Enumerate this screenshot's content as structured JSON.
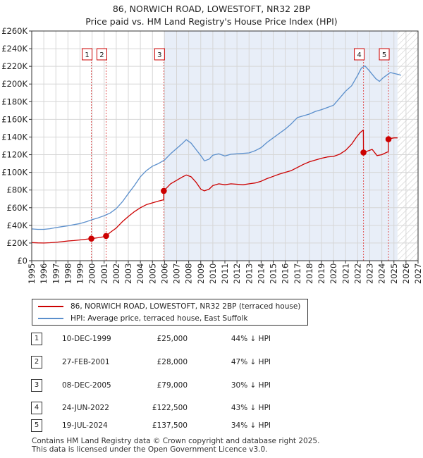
{
  "title_line1": "86, NORWICH ROAD, LOWESTOFT, NR32 2BP",
  "title_line2": "Price paid vs. HM Land Registry's House Price Index (HPI)",
  "chart_data": {
    "type": "line",
    "title": "86, NORWICH ROAD, LOWESTOFT, NR32 2BP",
    "subtitle": "Price paid vs. HM Land Registry's House Price Index (HPI)",
    "xlabel": "",
    "ylabel": "",
    "xlim": [
      1995,
      2027
    ],
    "ylim": [
      0,
      260000
    ],
    "x_ticks": [
      1995,
      1996,
      1997,
      1998,
      1999,
      2000,
      2001,
      2002,
      2003,
      2004,
      2005,
      2006,
      2007,
      2008,
      2009,
      2010,
      2011,
      2012,
      2013,
      2014,
      2015,
      2016,
      2017,
      2018,
      2019,
      2020,
      2021,
      2022,
      2023,
      2024,
      2025,
      2026,
      2027
    ],
    "y_ticks": [
      0,
      20000,
      40000,
      60000,
      80000,
      100000,
      120000,
      140000,
      160000,
      180000,
      200000,
      220000,
      240000,
      260000
    ],
    "y_tick_labels": [
      "£0",
      "£20K",
      "£40K",
      "£60K",
      "£80K",
      "£100K",
      "£120K",
      "£140K",
      "£160K",
      "£180K",
      "£200K",
      "£220K",
      "£240K",
      "£260K"
    ],
    "shaded_region": [
      2005.94,
      2025.3
    ],
    "projection_from": 2025.3,
    "grid": true,
    "series": [
      {
        "name": "86, NORWICH ROAD, LOWESTOFT, NR32 2BP (terraced house)",
        "color": "#cc0000",
        "x": [
          1995.0,
          1995.5,
          1996.0,
          1996.5,
          1997.0,
          1997.5,
          1998.0,
          1998.5,
          1999.0,
          1999.5,
          1999.94,
          2000.5,
          2001.0,
          2001.16,
          2001.5,
          2002.0,
          2002.5,
          2003.0,
          2003.5,
          2004.0,
          2004.5,
          2005.0,
          2005.5,
          2005.93,
          2005.94,
          2006.5,
          2007.0,
          2007.5,
          2007.8,
          2008.2,
          2008.6,
          2009.0,
          2009.3,
          2009.7,
          2010.0,
          2010.5,
          2011.0,
          2011.5,
          2012.0,
          2012.5,
          2013.0,
          2013.5,
          2014.0,
          2014.5,
          2015.0,
          2015.5,
          2016.0,
          2016.5,
          2017.0,
          2017.5,
          2018.0,
          2018.5,
          2019.0,
          2019.5,
          2020.0,
          2020.5,
          2021.0,
          2021.5,
          2021.9,
          2022.2,
          2022.47,
          2022.48,
          2022.8,
          2023.2,
          2023.6,
          2024.0,
          2024.3,
          2024.54,
          2024.55,
          2024.8,
          2025.0,
          2025.3
        ],
        "values": [
          20500,
          20200,
          20000,
          20300,
          20800,
          21500,
          22300,
          22800,
          23500,
          24300,
          25000,
          26000,
          27200,
          28000,
          32000,
          37000,
          44000,
          50000,
          55500,
          60000,
          63500,
          65500,
          67500,
          69000,
          79000,
          87000,
          91000,
          95000,
          97000,
          95000,
          89000,
          81000,
          79000,
          81000,
          85000,
          87000,
          86000,
          87000,
          86500,
          86000,
          87000,
          88000,
          90000,
          93000,
          95500,
          98000,
          100000,
          102000,
          105500,
          109000,
          112000,
          114000,
          116000,
          117500,
          118000,
          120500,
          125000,
          132000,
          140000,
          145000,
          148000,
          122500,
          124000,
          126000,
          119000,
          120000,
          122000,
          123500,
          137500,
          138500,
          139000,
          139000
        ]
      },
      {
        "name": "HPI: Average price, terraced house, East Suffolk",
        "color": "#5b8fcc",
        "x": [
          1995.0,
          1995.5,
          1996.0,
          1996.5,
          1997.0,
          1997.5,
          1998.0,
          1998.5,
          1999.0,
          1999.5,
          2000.0,
          2000.5,
          2001.0,
          2001.5,
          2002.0,
          2002.5,
          2003.0,
          2003.5,
          2004.0,
          2004.5,
          2005.0,
          2005.5,
          2006.0,
          2006.5,
          2007.0,
          2007.5,
          2007.8,
          2008.2,
          2008.6,
          2009.0,
          2009.3,
          2009.7,
          2010.0,
          2010.5,
          2011.0,
          2011.5,
          2012.0,
          2012.5,
          2013.0,
          2013.5,
          2014.0,
          2014.5,
          2015.0,
          2015.5,
          2016.0,
          2016.5,
          2017.0,
          2017.5,
          2018.0,
          2018.5,
          2019.0,
          2019.5,
          2020.0,
          2020.5,
          2021.0,
          2021.5,
          2022.0,
          2022.3,
          2022.6,
          2022.9,
          2023.2,
          2023.5,
          2023.8,
          2024.1,
          2024.4,
          2024.7,
          2025.0,
          2025.3,
          2025.6
        ],
        "values": [
          36000,
          35500,
          35500,
          36200,
          37500,
          38500,
          39500,
          40800,
          42000,
          44000,
          46500,
          48500,
          51000,
          54000,
          59000,
          66500,
          76000,
          85000,
          95000,
          102000,
          107000,
          110000,
          114000,
          121000,
          127000,
          133000,
          137000,
          133000,
          126000,
          119000,
          113000,
          115000,
          119500,
          121000,
          118500,
          120500,
          121000,
          121500,
          122000,
          124500,
          128000,
          134000,
          139000,
          144000,
          149000,
          155000,
          162000,
          164000,
          166000,
          169000,
          171000,
          173500,
          176000,
          184000,
          192000,
          198000,
          210000,
          218000,
          220500,
          216000,
          211000,
          206000,
          203000,
          207000,
          210000,
          213000,
          212000,
          211000,
          210000
        ]
      }
    ],
    "sales": [
      {
        "num": "1",
        "x": 1999.94,
        "price": 25000
      },
      {
        "num": "2",
        "x": 2001.16,
        "price": 28000
      },
      {
        "num": "3",
        "x": 2005.94,
        "price": 79000
      },
      {
        "num": "4",
        "x": 2022.48,
        "price": 122500
      },
      {
        "num": "5",
        "x": 2024.55,
        "price": 137500
      }
    ]
  },
  "legend": {
    "property_label": "86, NORWICH ROAD, LOWESTOFT, NR32 2BP (terraced house)",
    "hpi_label": "HPI: Average price, terraced house, East Suffolk"
  },
  "sales_table": [
    {
      "num": "1",
      "date": "10-DEC-1999",
      "price": "£25,000",
      "hpi": "44% ↓ HPI"
    },
    {
      "num": "2",
      "date": "27-FEB-2001",
      "price": "£28,000",
      "hpi": "47% ↓ HPI"
    },
    {
      "num": "3",
      "date": "08-DEC-2005",
      "price": "£79,000",
      "hpi": "30% ↓ HPI"
    },
    {
      "num": "4",
      "date": "24-JUN-2022",
      "price": "£122,500",
      "hpi": "43% ↓ HPI"
    },
    {
      "num": "5",
      "date": "19-JUL-2024",
      "price": "£137,500",
      "hpi": "34% ↓ HPI"
    }
  ],
  "footer_line1": "Contains HM Land Registry data © Crown copyright and database right 2025.",
  "footer_line2": "This data is licensed under the Open Government Licence v3.0."
}
